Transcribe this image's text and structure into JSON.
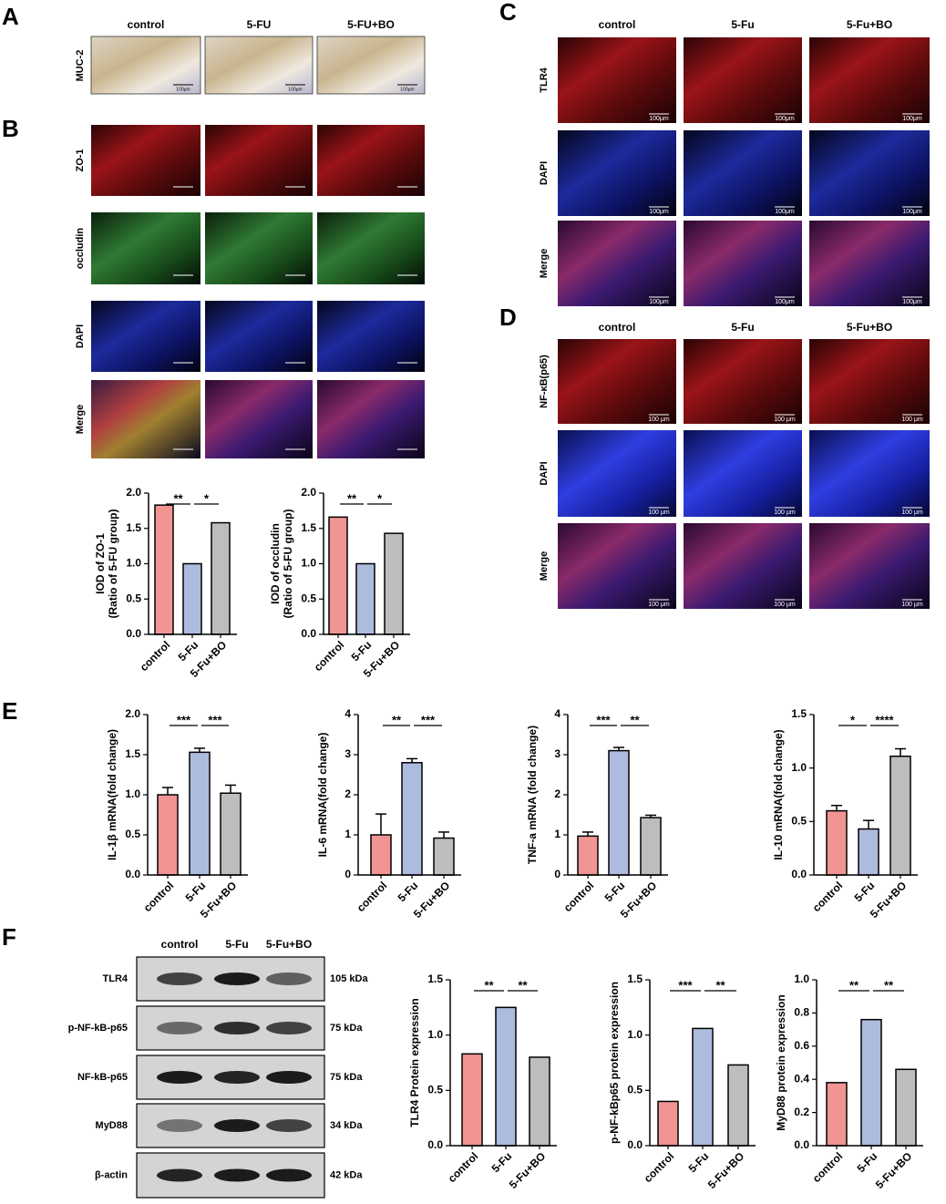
{
  "panels": {
    "letters": [
      "A",
      "B",
      "C",
      "D",
      "E",
      "F"
    ]
  },
  "panel_a": {
    "columns": [
      "control",
      "5-FU",
      "5-FU+BO"
    ],
    "rows": [
      "MUC-2"
    ],
    "scale_bar": "100μm"
  },
  "panel_b": {
    "rows": [
      "ZO-1",
      "occludin",
      "DAPI",
      "Merge"
    ]
  },
  "panel_c": {
    "columns": [
      "control",
      "5-Fu",
      "5-Fu+BO"
    ],
    "rows": [
      "TLR4",
      "DAPI",
      "Merge"
    ],
    "scale_bar": "100μm"
  },
  "panel_d": {
    "columns": [
      "control",
      "5-Fu",
      "5-Fu+BO"
    ],
    "rows": [
      "NF-κB(p65)",
      "DAPI",
      "Merge"
    ],
    "scale_bar": "100 μm"
  },
  "panel_f": {
    "columns": [
      "control",
      "5-Fu",
      "5-Fu+BO"
    ],
    "rows": [
      "TLR4",
      "p-NF-kB-p65",
      "NF-kB-p65",
      "MyD88",
      "β-actin"
    ],
    "sizes": [
      "105 kDa",
      "75 kDa",
      "75 kDa",
      "34 kDa",
      "42 kDa"
    ]
  },
  "chart_data": [
    {
      "type": "bar",
      "ylabel": [
        "IOD of ZO-1",
        "(Ratio of 5-FU group)"
      ],
      "categories": [
        "control",
        "5-Fu",
        "5-Fu+BO"
      ],
      "values": [
        1.83,
        1.0,
        1.58
      ],
      "colors": [
        "#f09494",
        "#adbbde",
        "#bdbdbd"
      ],
      "ylim": [
        0,
        2
      ],
      "yticks": [
        {
          "value": 0,
          "label": "0.0"
        },
        {
          "value": 0.5,
          "label": "0.5"
        },
        {
          "value": 1,
          "label": "1.0"
        },
        {
          "value": 1.5,
          "label": "1.5"
        },
        {
          "value": 2,
          "label": "2.0"
        }
      ],
      "annotations": [
        "**",
        "*"
      ]
    },
    {
      "type": "bar",
      "ylabel": [
        "IOD of occludin",
        "(Ratio of 5-FU group)"
      ],
      "categories": [
        "control",
        "5-Fu",
        "5-Fu+BO"
      ],
      "values": [
        1.66,
        1.0,
        1.43
      ],
      "colors": [
        "#f09494",
        "#adbbde",
        "#bdbdbd"
      ],
      "ylim": [
        0,
        2
      ],
      "yticks": [
        {
          "value": 0,
          "label": "0.0"
        },
        {
          "value": 0.5,
          "label": "0.5"
        },
        {
          "value": 1,
          "label": "1.0"
        },
        {
          "value": 1.5,
          "label": "1.5"
        },
        {
          "value": 2,
          "label": "2.0"
        }
      ],
      "annotations": [
        "**",
        "*"
      ]
    },
    {
      "type": "bar",
      "ylabel": [
        "IL-1β mRNA(fold change)"
      ],
      "categories": [
        "control",
        "5-Fu",
        "5-Fu+BO"
      ],
      "values": [
        1.0,
        1.53,
        1.02
      ],
      "errors": [
        0.09,
        0.05,
        0.1
      ],
      "colors": [
        "#f09494",
        "#adbbde",
        "#bdbdbd"
      ],
      "ylim": [
        0,
        2
      ],
      "yticks": [
        {
          "value": 0,
          "label": "0.0"
        },
        {
          "value": 0.5,
          "label": "0.5"
        },
        {
          "value": 1,
          "label": "1.0"
        },
        {
          "value": 1.5,
          "label": "1.5"
        },
        {
          "value": 2,
          "label": "2.0"
        }
      ],
      "annotations": [
        "***",
        "***"
      ]
    },
    {
      "type": "bar",
      "ylabel": [
        "IL-6 mRNA(fold change)"
      ],
      "categories": [
        "control",
        "5-Fu",
        "5-Fu+BO"
      ],
      "values": [
        1.0,
        2.8,
        0.92
      ],
      "errors": [
        0.52,
        0.1,
        0.15
      ],
      "colors": [
        "#f09494",
        "#adbbde",
        "#bdbdbd"
      ],
      "ylim": [
        0,
        4
      ],
      "yticks": [
        0,
        1,
        2,
        3,
        4
      ],
      "annotations": [
        "**",
        "***"
      ]
    },
    {
      "type": "bar",
      "ylabel": [
        "TNF-a mRNA (fold change)"
      ],
      "categories": [
        "control",
        "5-Fu",
        "5-Fu+BO"
      ],
      "values": [
        0.97,
        3.1,
        1.43
      ],
      "errors": [
        0.1,
        0.08,
        0.06
      ],
      "colors": [
        "#f09494",
        "#adbbde",
        "#bdbdbd"
      ],
      "ylim": [
        0,
        4
      ],
      "yticks": [
        0,
        1,
        2,
        3,
        4
      ],
      "annotations": [
        "***",
        "**"
      ]
    },
    {
      "type": "bar",
      "ylabel": [
        "IL-10 mRNA(fold change)"
      ],
      "categories": [
        "control",
        "5-Fu",
        "5-Fu+BO"
      ],
      "values": [
        0.6,
        0.43,
        1.11
      ],
      "errors": [
        0.05,
        0.08,
        0.07
      ],
      "colors": [
        "#f09494",
        "#adbbde",
        "#bdbdbd"
      ],
      "ylim": [
        0,
        1.5
      ],
      "yticks": [
        {
          "value": 0,
          "label": "0.0"
        },
        {
          "value": 0.5,
          "label": "0.5"
        },
        {
          "value": 1,
          "label": "1.0"
        },
        {
          "value": 1.5,
          "label": "1.5"
        }
      ],
      "annotations": [
        "*",
        "****"
      ]
    },
    {
      "type": "bar",
      "ylabel": [
        "TLR4 Protein expression"
      ],
      "categories": [
        "control",
        "5-Fu",
        "5-Fu+BO"
      ],
      "values": [
        0.83,
        1.25,
        0.8
      ],
      "colors": [
        "#f09494",
        "#adbbde",
        "#bdbdbd"
      ],
      "ylim": [
        0,
        1.5
      ],
      "yticks": [
        {
          "value": 0,
          "label": "0.0"
        },
        {
          "value": 0.5,
          "label": "0.5"
        },
        {
          "value": 1,
          "label": "1.0"
        },
        {
          "value": 1.5,
          "label": "1.5"
        }
      ],
      "annotations": [
        "**",
        "**"
      ]
    },
    {
      "type": "bar",
      "ylabel": [
        "p-NF-kBp65 protein expression"
      ],
      "categories": [
        "control",
        "5-Fu",
        "5-Fu+BO"
      ],
      "values": [
        0.4,
        1.06,
        0.73
      ],
      "colors": [
        "#f09494",
        "#adbbde",
        "#bdbdbd"
      ],
      "ylim": [
        0,
        1.5
      ],
      "yticks": [
        {
          "value": 0,
          "label": "0.0"
        },
        {
          "value": 0.5,
          "label": "0.5"
        },
        {
          "value": 1,
          "label": "1.0"
        },
        {
          "value": 1.5,
          "label": "1.5"
        }
      ],
      "annotations": [
        "***",
        "**"
      ]
    },
    {
      "type": "bar",
      "ylabel": [
        "MyD88 protein expression"
      ],
      "categories": [
        "control",
        "5-Fu",
        "5-Fu+BO"
      ],
      "values": [
        0.38,
        0.76,
        0.46
      ],
      "colors": [
        "#f09494",
        "#adbbde",
        "#bdbdbd"
      ],
      "ylim": [
        0,
        1
      ],
      "yticks": [
        {
          "value": 0,
          "label": "0.0"
        },
        {
          "value": 0.2,
          "label": "0.2"
        },
        {
          "value": 0.4,
          "label": "0.4"
        },
        {
          "value": 0.6,
          "label": "0.6"
        },
        {
          "value": 0.8,
          "label": "0.8"
        },
        {
          "value": 1,
          "label": "1.0"
        }
      ],
      "annotations": [
        "**",
        "**"
      ]
    }
  ]
}
